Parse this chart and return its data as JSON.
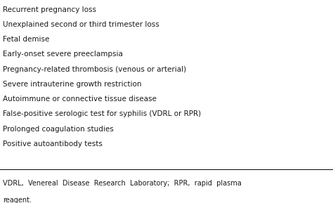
{
  "main_items": [
    "Recurrent pregnancy loss",
    "Unexplained second or third trimester loss",
    "Fetal demise",
    "Early-onset severe preeclampsia",
    "Pregnancy-related thrombosis (venous or arterial)",
    "Severe intrauterine growth restriction",
    "Autoimmune or connective tissue disease",
    "False-positive serologic test for syphilis (VDRL or RPR)",
    "Prolonged coagulation studies",
    "Positive autoantibody tests"
  ],
  "footnote_line1": "VDRL,  Venereal  Disease  Research  Laboratory;  RPR,  rapid  plasma",
  "footnote_line2": "reagent.",
  "background_color": "#ffffff",
  "text_color": "#1a1a1a",
  "font_size": 7.5,
  "footnote_font_size": 7.0,
  "line_color": "#000000",
  "figwidth": 4.74,
  "figheight": 2.89,
  "dpi": 100
}
